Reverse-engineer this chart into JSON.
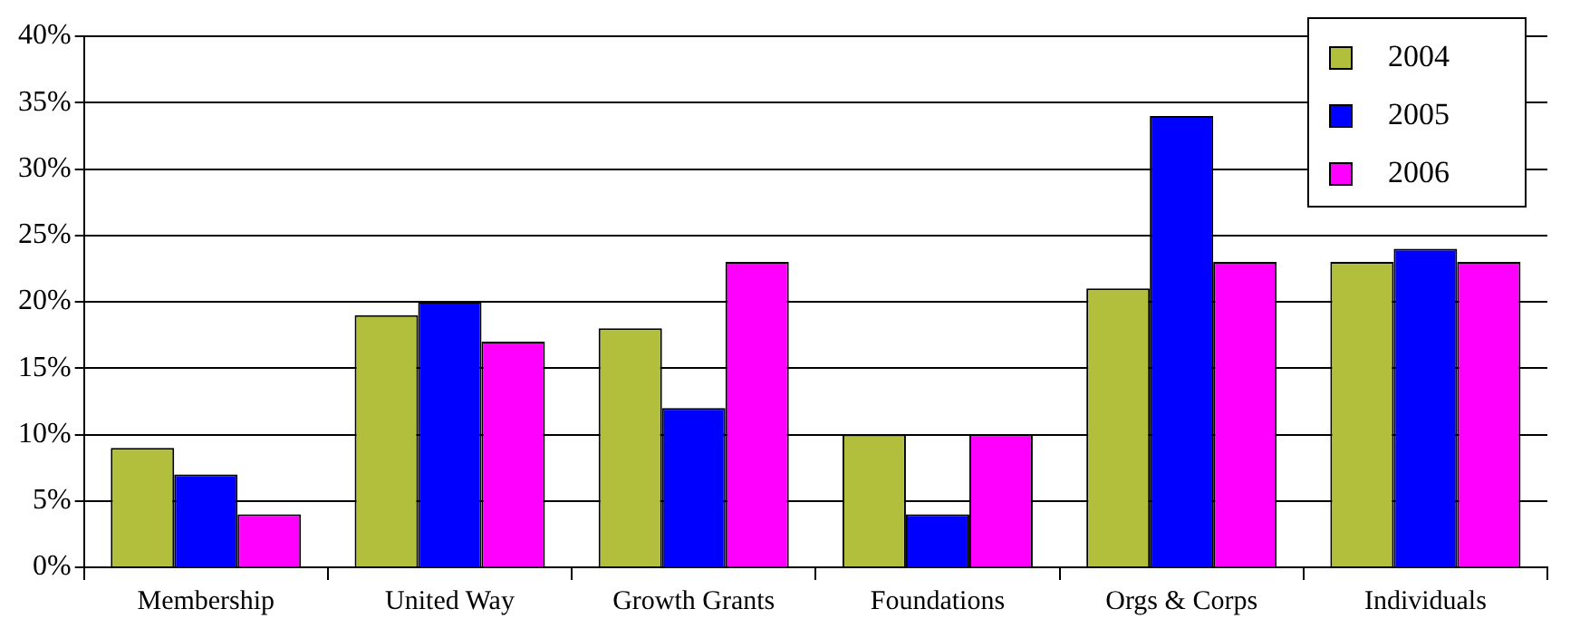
{
  "chart_data": {
    "type": "bar",
    "categories": [
      "Membership",
      "United Way",
      "Growth Grants",
      "Foundations",
      "Orgs & Corps",
      "Individuals"
    ],
    "series": [
      {
        "name": "2004",
        "color": "#b2bf3c",
        "values": [
          9,
          19,
          18,
          10,
          21,
          23
        ]
      },
      {
        "name": "2005",
        "color": "#0000ff",
        "values": [
          7,
          20,
          12,
          4,
          34,
          24
        ]
      },
      {
        "name": "2006",
        "color": "#ff00ff",
        "values": [
          4,
          17,
          23,
          10,
          23,
          23
        ]
      }
    ],
    "ylim": [
      0,
      40
    ],
    "yticks": [
      {
        "value": 0,
        "label": "0%"
      },
      {
        "value": 5,
        "label": "5%"
      },
      {
        "value": 10,
        "label": "10%"
      },
      {
        "value": 15,
        "label": "15%"
      },
      {
        "value": 20,
        "label": "20%"
      },
      {
        "value": 25,
        "label": "25%"
      },
      {
        "value": 30,
        "label": "30%"
      },
      {
        "value": 35,
        "label": "35%"
      },
      {
        "value": 40,
        "label": "40%"
      }
    ],
    "grid": "y",
    "legend": "top right"
  }
}
